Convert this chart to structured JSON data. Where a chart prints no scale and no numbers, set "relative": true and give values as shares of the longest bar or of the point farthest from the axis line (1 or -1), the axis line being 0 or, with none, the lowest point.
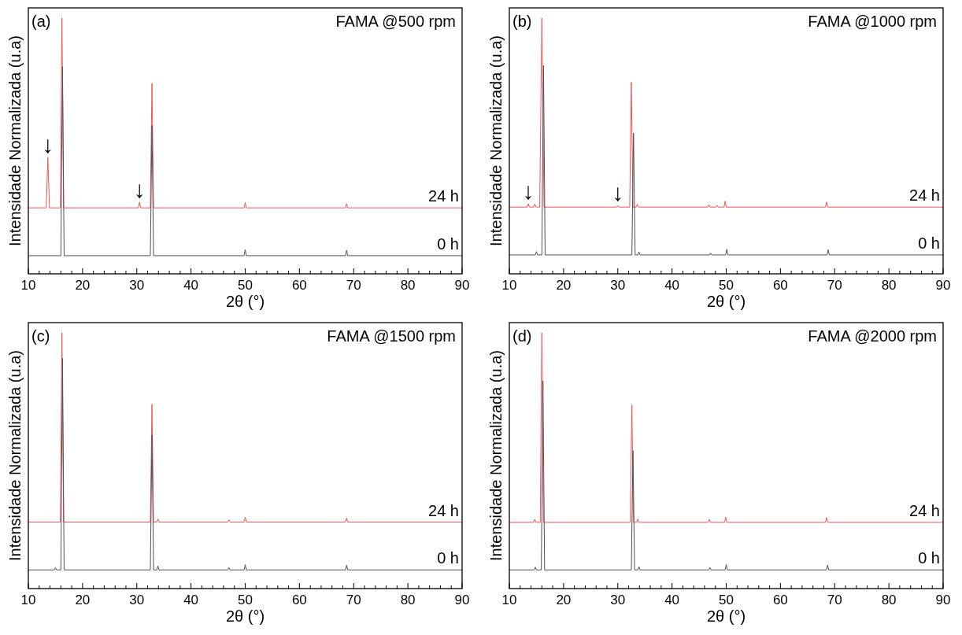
{
  "chart_data": [
    {
      "type": "line",
      "title": "FAMA @500 rpm",
      "annotations": [
        "(a)",
        {
          "text": "↓",
          "x": 13.6,
          "y": 0.455
        },
        {
          "text": "↓",
          "x": 30.5,
          "y": 0.28
        }
      ],
      "xlabel": "2θ (°)",
      "ylabel": "Intensidade Normalizada (u.a)",
      "relative": true,
      "xlim": [
        10,
        90
      ],
      "xticks": [
        10,
        {
          "value": 12,
          "label": null
        },
        {
          "value": 14,
          "label": null
        },
        {
          "value": 16,
          "label": null
        },
        {
          "value": 18,
          "label": null
        },
        20,
        {
          "value": 22,
          "label": null
        },
        {
          "value": 24,
          "label": null
        },
        {
          "value": 26,
          "label": null
        },
        {
          "value": 28,
          "label": null
        },
        30,
        {
          "value": 32,
          "label": null
        },
        {
          "value": 34,
          "label": null
        },
        {
          "value": 36,
          "label": null
        },
        {
          "value": 38,
          "label": null
        },
        40,
        {
          "value": 42,
          "label": null
        },
        {
          "value": 44,
          "label": null
        },
        {
          "value": 46,
          "label": null
        },
        {
          "value": 48,
          "label": null
        },
        50,
        {
          "value": 52,
          "label": null
        },
        {
          "value": 54,
          "label": null
        },
        {
          "value": 56,
          "label": null
        },
        {
          "value": 58,
          "label": null
        },
        60,
        {
          "value": 62,
          "label": null
        },
        {
          "value": 64,
          "label": null
        },
        {
          "value": 66,
          "label": null
        },
        {
          "value": 68,
          "label": null
        },
        70,
        {
          "value": 72,
          "label": null
        },
        {
          "value": 74,
          "label": null
        },
        {
          "value": 76,
          "label": null
        },
        {
          "value": 78,
          "label": null
        },
        80,
        {
          "value": 82,
          "label": null
        },
        {
          "value": 84,
          "label": null
        },
        {
          "value": 86,
          "label": null
        },
        {
          "value": 88,
          "label": null
        },
        90
      ],
      "series": [
        {
          "name": "0 h",
          "color": "#505050",
          "x": [
            10,
            16.0,
            16.3,
            16.6,
            32.5,
            32.8,
            33.1,
            49.8,
            50.0,
            50.2,
            68.5,
            68.7,
            68.9,
            90
          ],
          "values": [
            0.071,
            0.071,
            0.81,
            0.071,
            0.071,
            0.58,
            0.071,
            0.071,
            0.094,
            0.071,
            0.071,
            0.092,
            0.071,
            0.071
          ]
        },
        {
          "name": "24 h",
          "color": "#f05555",
          "x": [
            10,
            13.3,
            13.6,
            13.9,
            15.9,
            16.2,
            16.5,
            30.3,
            30.5,
            30.7,
            32.5,
            32.8,
            33.1,
            49.8,
            50.0,
            50.2,
            68.5,
            68.7,
            68.9,
            90
          ],
          "values": [
            0.258,
            0.258,
            0.455,
            0.258,
            0.258,
            1,
            0.258,
            0.258,
            0.28,
            0.258,
            0.258,
            0.745,
            0.258,
            0.258,
            0.279,
            0.258,
            0.258,
            0.274,
            0.258,
            0.258
          ]
        }
      ]
    },
    {
      "type": "line",
      "title": "FAMA @1000 rpm",
      "annotations": [
        "(b)",
        {
          "text": "↓",
          "x": 13.5,
          "y": 0.274
        },
        {
          "text": "↓",
          "x": 30.0,
          "y": 0.267
        }
      ],
      "xlabel": "2θ (°)",
      "ylabel": "Intensidade Normalizada (u.a)",
      "relative": true,
      "xlim": [
        10,
        90
      ],
      "xticks": [
        10,
        {
          "value": 12,
          "label": null
        },
        {
          "value": 14,
          "label": null
        },
        {
          "value": 16,
          "label": null
        },
        {
          "value": 18,
          "label": null
        },
        20,
        {
          "value": 22,
          "label": null
        },
        {
          "value": 24,
          "label": null
        },
        {
          "value": 26,
          "label": null
        },
        {
          "value": 28,
          "label": null
        },
        30,
        {
          "value": 32,
          "label": null
        },
        {
          "value": 34,
          "label": null
        },
        {
          "value": 36,
          "label": null
        },
        {
          "value": 38,
          "label": null
        },
        40,
        {
          "value": 42,
          "label": null
        },
        {
          "value": 44,
          "label": null
        },
        {
          "value": 46,
          "label": null
        },
        {
          "value": 48,
          "label": null
        },
        50,
        {
          "value": 52,
          "label": null
        },
        {
          "value": 54,
          "label": null
        },
        {
          "value": 56,
          "label": null
        },
        {
          "value": 58,
          "label": null
        },
        60,
        {
          "value": 62,
          "label": null
        },
        {
          "value": 64,
          "label": null
        },
        {
          "value": 66,
          "label": null
        },
        {
          "value": 68,
          "label": null
        },
        70,
        {
          "value": 72,
          "label": null
        },
        {
          "value": 74,
          "label": null
        },
        {
          "value": 76,
          "label": null
        },
        {
          "value": 78,
          "label": null
        },
        80,
        {
          "value": 82,
          "label": null
        },
        {
          "value": 84,
          "label": null
        },
        {
          "value": 86,
          "label": null
        },
        {
          "value": 88,
          "label": null
        },
        90
      ],
      "series": [
        {
          "name": "0 h",
          "color": "#505050",
          "x": [
            10,
            14.8,
            15.0,
            15.2,
            16.0,
            16.3,
            16.6,
            32.6,
            32.9,
            33.2,
            33.7,
            33.9,
            34.1,
            46.9,
            47.1,
            47.3,
            49.9,
            50.1,
            50.3,
            68.6,
            68.8,
            69.0,
            90
          ],
          "values": [
            0.074,
            0.074,
            0.087,
            0.074,
            0.074,
            0.815,
            0.074,
            0.074,
            0.55,
            0.074,
            0.074,
            0.086,
            0.074,
            0.074,
            0.081,
            0.074,
            0.074,
            0.096,
            0.074,
            0.074,
            0.094,
            0.074,
            0.074
          ]
        },
        {
          "name": "24 h",
          "color": "#f05555",
          "x": [
            10,
            13.3,
            13.5,
            13.7,
            14.5,
            14.7,
            14.9,
            15.6,
            16.0,
            16.4,
            29.8,
            30.0,
            30.2,
            32.2,
            32.5,
            32.8,
            33.4,
            33.6,
            33.8,
            46.6,
            46.8,
            47.0,
            48.1,
            48.3,
            48.5,
            49.6,
            49.8,
            50.0,
            68.3,
            68.5,
            68.7,
            90
          ],
          "values": [
            0.261,
            0.261,
            0.274,
            0.261,
            0.261,
            0.273,
            0.261,
            0.261,
            1,
            0.261,
            0.261,
            0.267,
            0.261,
            0.261,
            0.749,
            0.261,
            0.261,
            0.272,
            0.261,
            0.261,
            0.27,
            0.261,
            0.261,
            0.268,
            0.261,
            0.261,
            0.284,
            0.261,
            0.261,
            0.281,
            0.261,
            0.261
          ]
        }
      ]
    },
    {
      "type": "line",
      "title": "FAMA @1500 rpm",
      "annotations": [
        "(c)"
      ],
      "xlabel": "2θ (°)",
      "ylabel": "Intensidade Normalizada (u.a)",
      "relative": true,
      "xlim": [
        10,
        90
      ],
      "xticks": [
        10,
        {
          "value": 12,
          "label": null
        },
        {
          "value": 14,
          "label": null
        },
        {
          "value": 16,
          "label": null
        },
        {
          "value": 18,
          "label": null
        },
        20,
        {
          "value": 22,
          "label": null
        },
        {
          "value": 24,
          "label": null
        },
        {
          "value": 26,
          "label": null
        },
        {
          "value": 28,
          "label": null
        },
        30,
        {
          "value": 32,
          "label": null
        },
        {
          "value": 34,
          "label": null
        },
        {
          "value": 36,
          "label": null
        },
        {
          "value": 38,
          "label": null
        },
        40,
        {
          "value": 42,
          "label": null
        },
        {
          "value": 44,
          "label": null
        },
        {
          "value": 46,
          "label": null
        },
        {
          "value": 48,
          "label": null
        },
        50,
        {
          "value": 52,
          "label": null
        },
        {
          "value": 54,
          "label": null
        },
        {
          "value": 56,
          "label": null
        },
        {
          "value": 58,
          "label": null
        },
        60,
        {
          "value": 62,
          "label": null
        },
        {
          "value": 64,
          "label": null
        },
        {
          "value": 66,
          "label": null
        },
        {
          "value": 68,
          "label": null
        },
        70,
        {
          "value": 72,
          "label": null
        },
        {
          "value": 74,
          "label": null
        },
        {
          "value": 76,
          "label": null
        },
        {
          "value": 78,
          "label": null
        },
        80,
        {
          "value": 82,
          "label": null
        },
        {
          "value": 84,
          "label": null
        },
        {
          "value": 86,
          "label": null
        },
        {
          "value": 88,
          "label": null
        },
        90
      ],
      "series": [
        {
          "name": "0 h",
          "color": "#505050",
          "x": [
            10,
            14.8,
            15.0,
            15.2,
            16.0,
            16.3,
            16.6,
            32.5,
            32.8,
            33.1,
            33.7,
            33.9,
            34.1,
            46.8,
            47.0,
            47.2,
            49.8,
            50.0,
            50.2,
            68.5,
            68.7,
            68.9,
            90
          ],
          "values": [
            0.073,
            0.073,
            0.082,
            0.073,
            0.073,
            0.9,
            0.073,
            0.073,
            0.6,
            0.073,
            0.073,
            0.088,
            0.073,
            0.073,
            0.082,
            0.073,
            0.073,
            0.093,
            0.073,
            0.073,
            0.091,
            0.073,
            0.073
          ]
        },
        {
          "name": "24 h",
          "color": "#f05555",
          "x": [
            10,
            15.9,
            16.2,
            16.5,
            32.5,
            32.8,
            33.1,
            33.7,
            33.9,
            34.1,
            46.8,
            47.0,
            47.2,
            49.8,
            50.0,
            50.2,
            68.5,
            68.7,
            68.9,
            90
          ],
          "values": [
            0.26,
            0.26,
            1,
            0.26,
            0.26,
            0.721,
            0.26,
            0.26,
            0.272,
            0.26,
            0.26,
            0.269,
            0.26,
            0.26,
            0.279,
            0.26,
            0.26,
            0.276,
            0.26,
            0.26
          ]
        }
      ]
    },
    {
      "type": "line",
      "title": "FAMA @2000 rpm",
      "annotations": [
        "(d)"
      ],
      "xlabel": "2θ (°)",
      "ylabel": "Intensidade Normalizada (u.a)",
      "relative": true,
      "xlim": [
        10,
        90
      ],
      "xticks": [
        10,
        {
          "value": 12,
          "label": null
        },
        {
          "value": 14,
          "label": null
        },
        {
          "value": 16,
          "label": null
        },
        {
          "value": 18,
          "label": null
        },
        20,
        {
          "value": 22,
          "label": null
        },
        {
          "value": 24,
          "label": null
        },
        {
          "value": 26,
          "label": null
        },
        {
          "value": 28,
          "label": null
        },
        30,
        {
          "value": 32,
          "label": null
        },
        {
          "value": 34,
          "label": null
        },
        {
          "value": 36,
          "label": null
        },
        {
          "value": 38,
          "label": null
        },
        40,
        {
          "value": 42,
          "label": null
        },
        {
          "value": 44,
          "label": null
        },
        {
          "value": 46,
          "label": null
        },
        {
          "value": 48,
          "label": null
        },
        50,
        {
          "value": 52,
          "label": null
        },
        {
          "value": 54,
          "label": null
        },
        {
          "value": 56,
          "label": null
        },
        {
          "value": 58,
          "label": null
        },
        60,
        {
          "value": 62,
          "label": null
        },
        {
          "value": 64,
          "label": null
        },
        {
          "value": 66,
          "label": null
        },
        {
          "value": 68,
          "label": null
        },
        70,
        {
          "value": 72,
          "label": null
        },
        {
          "value": 74,
          "label": null
        },
        {
          "value": 76,
          "label": null
        },
        {
          "value": 78,
          "label": null
        },
        80,
        {
          "value": 82,
          "label": null
        },
        {
          "value": 84,
          "label": null
        },
        {
          "value": 86,
          "label": null
        },
        {
          "value": 88,
          "label": null
        },
        90
      ],
      "series": [
        {
          "name": "0 h",
          "color": "#505050",
          "x": [
            10,
            14.6,
            14.8,
            15.0,
            15.9,
            16.2,
            16.5,
            32.5,
            32.8,
            33.1,
            33.7,
            33.9,
            34.1,
            46.8,
            47.0,
            47.2,
            49.8,
            50.0,
            50.2,
            68.5,
            68.7,
            68.9,
            90
          ],
          "values": [
            0.073,
            0.073,
            0.084,
            0.073,
            0.073,
            0.812,
            0.073,
            0.073,
            0.539,
            0.073,
            0.073,
            0.086,
            0.073,
            0.073,
            0.082,
            0.073,
            0.073,
            0.094,
            0.073,
            0.073,
            0.092,
            0.073,
            0.073
          ]
        },
        {
          "name": "24 h",
          "color": "#f05555",
          "x": [
            10,
            14.5,
            14.7,
            14.9,
            15.7,
            16.0,
            16.3,
            32.3,
            32.6,
            32.9,
            33.5,
            33.7,
            33.9,
            46.7,
            46.9,
            47.1,
            49.7,
            49.9,
            50.1,
            68.3,
            68.5,
            68.7,
            90
          ],
          "values": [
            0.259,
            0.259,
            0.271,
            0.259,
            0.259,
            1,
            0.259,
            0.259,
            0.718,
            0.259,
            0.259,
            0.272,
            0.259,
            0.259,
            0.271,
            0.259,
            0.259,
            0.279,
            0.259,
            0.259,
            0.278,
            0.259,
            0.259
          ]
        }
      ]
    }
  ]
}
